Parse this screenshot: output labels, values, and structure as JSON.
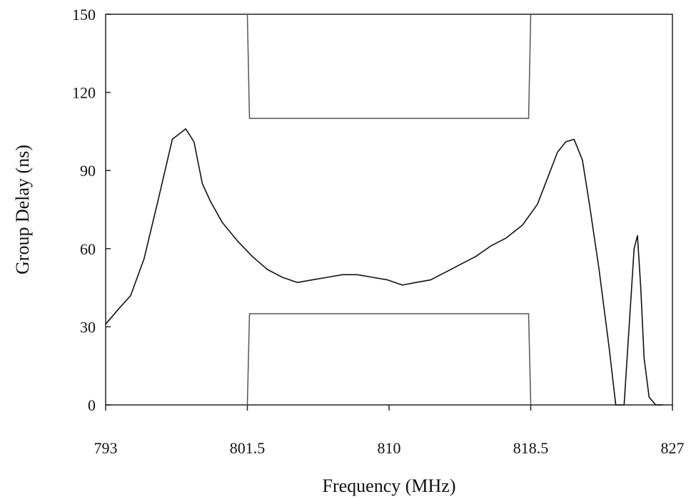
{
  "chart_data": {
    "type": "line",
    "xlabel": "Frequency (MHz)",
    "ylabel": "Group Delay (ns)",
    "xlim": [
      793,
      827
    ],
    "ylim": [
      0,
      150
    ],
    "x_ticks": [
      "793",
      "801.5",
      "810",
      "818.5",
      "827"
    ],
    "x_tick_values": [
      793,
      801.5,
      810,
      818.5,
      827
    ],
    "y_ticks": [
      "0",
      "30",
      "60",
      "90",
      "120",
      "150"
    ],
    "y_tick_values": [
      0,
      30,
      60,
      90,
      120,
      150
    ],
    "grid": false,
    "series": [
      {
        "role": "measured group delay",
        "color": "#111111",
        "x": [
          793,
          793.8,
          794.5,
          795.3,
          796.2,
          797.0,
          797.8,
          798.3,
          798.8,
          799.3,
          800.0,
          800.9,
          801.8,
          802.7,
          803.6,
          804.5,
          805.4,
          806.3,
          807.2,
          808.1,
          809.0,
          809.9,
          810.8,
          811.6,
          812.5,
          813.4,
          814.3,
          815.2,
          816.1,
          817.0,
          818.0,
          818.9,
          819.5,
          820.1,
          820.6,
          821.1,
          821.6,
          822.0,
          822.6,
          823.2,
          823.6,
          824.1,
          824.4,
          824.7,
          824.9,
          825.1,
          825.3,
          825.6,
          826.0,
          826.4
        ],
        "y": [
          31,
          37,
          42,
          56,
          80,
          102,
          106,
          101,
          85,
          78,
          70,
          63,
          57,
          52,
          49,
          47,
          48,
          49,
          50,
          50,
          49,
          48,
          46,
          47,
          48,
          51,
          54,
          57,
          61,
          64,
          69,
          77,
          87,
          97,
          101,
          102,
          94,
          78,
          52,
          22,
          0,
          0,
          30,
          60,
          65,
          45,
          18,
          3,
          0,
          0
        ]
      }
    ],
    "mask": {
      "upper": {
        "x_start": 801.5,
        "x_end": 818.5,
        "y_bottom": 110,
        "y_top": 150
      },
      "lower": {
        "x_start": 801.5,
        "x_end": 818.5,
        "y_top": 35,
        "y_bottom": 0
      },
      "color": "#555555"
    },
    "axis_color": "#222222"
  }
}
